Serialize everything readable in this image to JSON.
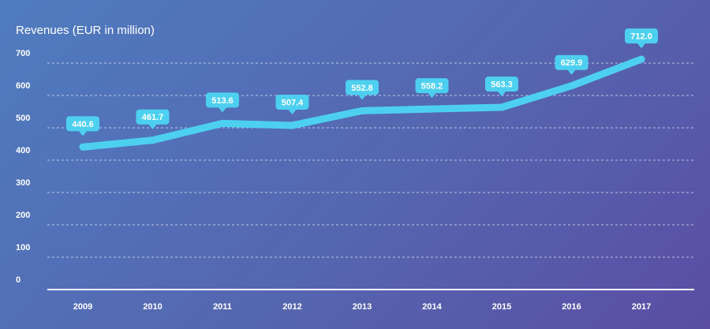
{
  "chart_data": {
    "type": "line",
    "title": "Revenues   (EUR in million)",
    "categories": [
      "2009",
      "2010",
      "2011",
      "2012",
      "2013",
      "2014",
      "2015",
      "2016",
      "2017"
    ],
    "values": [
      440.6,
      461.7,
      513.6,
      507.4,
      552.8,
      558.2,
      563.3,
      629.9,
      712.0
    ],
    "value_labels": [
      "440.6",
      "461.7",
      "513.6",
      "507.4",
      "552.8",
      "558.2",
      "563.3",
      "629.9",
      "712.0"
    ],
    "yticks": [
      "0",
      "100",
      "200",
      "300",
      "400",
      "500",
      "600",
      "700"
    ],
    "ylim": [
      0,
      700
    ],
    "grid": true,
    "line_color": "#4dd0f0",
    "label_bg": "#4dd0f0",
    "axis_color": "#ffffff"
  }
}
